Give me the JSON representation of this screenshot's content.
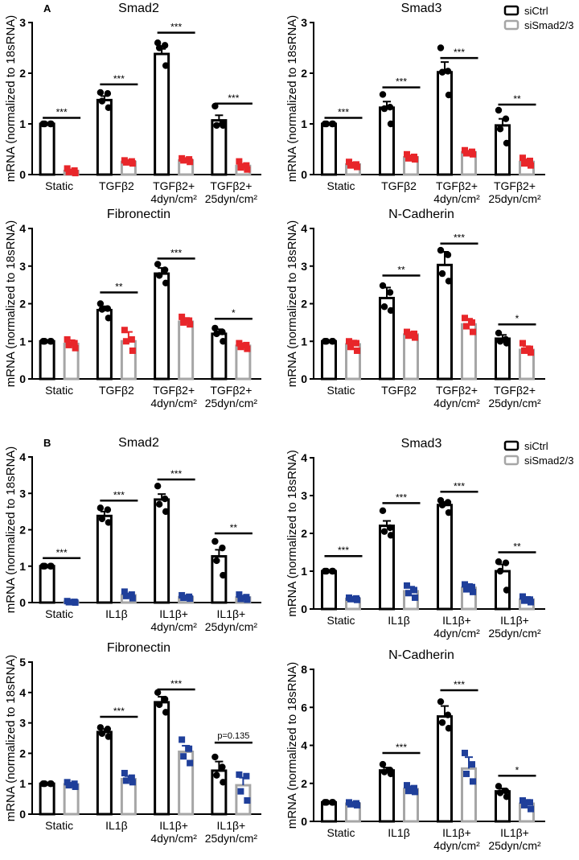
{
  "figure": {
    "legend": {
      "entries": [
        {
          "name": "siCtrl",
          "edge": "#000000"
        },
        {
          "name": "siSmad2/3",
          "edge": "#a6a6a6"
        }
      ]
    },
    "y_axis_label": "mRNA (normalized to 18sRNA)",
    "colors": {
      "ctrl_edge": "#000000",
      "knock_edge": "#a6a6a6",
      "ctrl_points": "#000000",
      "panelA_points": "#e8262a",
      "panelB_points": "#1f3f9a"
    }
  },
  "chart_data": [
    {
      "type": "bar",
      "panel": "A",
      "panel_label": "A",
      "title": "Smad2",
      "categories": [
        "Static",
        "TGFβ2",
        "TGFβ2+|4dyn/cm²",
        "TGFβ2+|25dyn/cm²"
      ],
      "ylabel": "mRNA (normalized to 18sRNA)",
      "ylim": [
        0,
        3
      ],
      "yticks": [
        0,
        1,
        2,
        3
      ],
      "series": [
        {
          "name": "siCtrl",
          "values": [
            1.0,
            1.47,
            2.38,
            1.07
          ],
          "errors": [
            0.0,
            0.08,
            0.1,
            0.1
          ],
          "points": [
            [
              1.0,
              1.0,
              1.0,
              1.0
            ],
            [
              1.62,
              1.6,
              1.45,
              1.32
            ],
            [
              2.6,
              2.55,
              2.5,
              2.15
            ],
            [
              1.35,
              1.0,
              0.97,
              0.97
            ]
          ]
        },
        {
          "name": "siSmad2/3",
          "values": [
            0.07,
            0.25,
            0.28,
            0.17
          ],
          "errors": [
            0.03,
            0.02,
            0.02,
            0.04
          ],
          "points": [
            [
              0.12,
              0.08,
              0.05,
              0.03
            ],
            [
              0.28,
              0.26,
              0.24,
              0.22
            ],
            [
              0.32,
              0.3,
              0.28,
              0.25
            ],
            [
              0.26,
              0.18,
              0.14,
              0.1
            ]
          ]
        }
      ],
      "significance": [
        "***",
        "***",
        "***",
        "***"
      ],
      "significance_levels": [
        1.12,
        1.78,
        2.8,
        1.4
      ]
    },
    {
      "type": "bar",
      "panel": "A",
      "panel_label": "",
      "title": "Smad3",
      "show_legend": true,
      "categories": [
        "Static",
        "TGFβ2",
        "TGFβ2+|4dyn/cm²",
        "TGFβ2+|25dyn/cm²"
      ],
      "ylabel": "mRNA (normalized to 18sRNA)",
      "ylim": [
        0,
        3
      ],
      "yticks": [
        0,
        1,
        2,
        3
      ],
      "series": [
        {
          "name": "siCtrl",
          "values": [
            1.0,
            1.32,
            2.02,
            0.97
          ],
          "errors": [
            0.0,
            0.12,
            0.2,
            0.13
          ],
          "points": [
            [
              1.0,
              1.0,
              1.0,
              1.0
            ],
            [
              1.58,
              1.33,
              1.3,
              1.0
            ],
            [
              2.5,
              2.04,
              2.02,
              1.57
            ],
            [
              1.27,
              1.1,
              0.9,
              0.62
            ]
          ]
        },
        {
          "name": "siSmad2/3",
          "values": [
            0.2,
            0.34,
            0.44,
            0.25
          ],
          "errors": [
            0.04,
            0.04,
            0.03,
            0.05
          ],
          "points": [
            [
              0.25,
              0.2,
              0.18,
              0.15
            ],
            [
              0.4,
              0.35,
              0.32,
              0.3
            ],
            [
              0.48,
              0.45,
              0.42,
              0.4
            ],
            [
              0.33,
              0.27,
              0.22,
              0.18
            ]
          ]
        }
      ],
      "significance": [
        "***",
        "***",
        "***",
        "**"
      ],
      "significance_levels": [
        1.12,
        1.72,
        2.3,
        1.38
      ]
    },
    {
      "type": "bar",
      "panel": "A",
      "panel_label": "",
      "title": "Fibronectin",
      "categories": [
        "Static",
        "TGFβ2",
        "TGFβ2+|4dyn/cm²",
        "TGFβ2+|25dyn/cm²"
      ],
      "ylabel": "mRNA (normalized to 18sRNA)",
      "ylim": [
        0,
        4
      ],
      "yticks": [
        0,
        1,
        2,
        3,
        4
      ],
      "series": [
        {
          "name": "siCtrl",
          "values": [
            1.0,
            1.83,
            2.8,
            1.2
          ],
          "errors": [
            0.0,
            0.1,
            0.15,
            0.12
          ],
          "points": [
            [
              1.0,
              1.0,
              1.0,
              1.0
            ],
            [
              2.0,
              1.87,
              1.85,
              1.62
            ],
            [
              3.05,
              2.9,
              2.75,
              2.55
            ],
            [
              1.35,
              1.25,
              1.2,
              1.0
            ]
          ]
        },
        {
          "name": "siSmad2/3",
          "values": [
            0.93,
            1.0,
            1.52,
            0.88
          ],
          "errors": [
            0.1,
            0.25,
            0.1,
            0.07
          ],
          "points": [
            [
              1.05,
              0.95,
              0.9,
              0.82
            ],
            [
              1.3,
              1.05,
              1.0,
              0.75
            ],
            [
              1.65,
              1.55,
              1.5,
              1.45
            ],
            [
              0.95,
              0.9,
              0.85,
              0.8
            ]
          ]
        }
      ],
      "significance": [
        "",
        "**",
        "***",
        "*"
      ],
      "significance_levels": [
        0,
        2.3,
        3.2,
        1.6
      ]
    },
    {
      "type": "bar",
      "panel": "A",
      "panel_label": "",
      "title": "N-Cadherin",
      "categories": [
        "Static",
        "TGFβ2",
        "TGFβ2+|4dyn/cm²",
        "TGFβ2+|25dyn/cm²"
      ],
      "ylabel": "mRNA (normalized to 18sRNA)",
      "ylim": [
        0,
        4
      ],
      "yticks": [
        0,
        1,
        2,
        3,
        4
      ],
      "series": [
        {
          "name": "siCtrl",
          "values": [
            1.0,
            2.15,
            3.03,
            1.07
          ],
          "errors": [
            0.0,
            0.28,
            0.35,
            0.1
          ],
          "points": [
            [
              1.0,
              1.0,
              1.0,
              1.0
            ],
            [
              2.48,
              2.3,
              1.92,
              1.82
            ],
            [
              3.42,
              3.3,
              2.8,
              2.6
            ],
            [
              1.22,
              1.05,
              1.0,
              0.95
            ]
          ]
        },
        {
          "name": "siSmad2/3",
          "values": [
            0.92,
            1.18,
            1.45,
            0.77
          ],
          "errors": [
            0.1,
            0.07,
            0.15,
            0.1
          ],
          "points": [
            [
              1.0,
              0.95,
              0.85,
              0.75
            ],
            [
              1.25,
              1.2,
              1.15,
              1.1
            ],
            [
              1.62,
              1.5,
              1.4,
              1.25
            ],
            [
              0.95,
              0.8,
              0.75,
              0.7
            ]
          ]
        }
      ],
      "significance": [
        "",
        "**",
        "***",
        "*"
      ],
      "significance_levels": [
        0,
        2.75,
        3.6,
        1.45
      ]
    },
    {
      "type": "bar",
      "panel": "B",
      "panel_label": "B",
      "title": "Smad2",
      "categories": [
        "Static",
        "IL1β",
        "IL1β+|4dyn/cm²",
        "IL1β+|25dyn/cm²"
      ],
      "ylabel": "mRNA (normalized to 18sRNA)",
      "ylim": [
        0,
        4
      ],
      "yticks": [
        0,
        1,
        2,
        3,
        4
      ],
      "series": [
        {
          "name": "siCtrl",
          "values": [
            1.0,
            2.38,
            2.83,
            1.27
          ],
          "errors": [
            0.0,
            0.12,
            0.15,
            0.18
          ],
          "points": [
            [
              1.0,
              1.0,
              1.0,
              1.0
            ],
            [
              2.6,
              2.55,
              2.3,
              2.2
            ],
            [
              3.2,
              2.85,
              2.7,
              2.5
            ],
            [
              1.68,
              1.5,
              1.15,
              0.75
            ]
          ]
        },
        {
          "name": "siSmad2/3",
          "values": [
            0.02,
            0.2,
            0.15,
            0.14
          ],
          "errors": [
            0.01,
            0.05,
            0.03,
            0.05
          ],
          "points": [
            [
              0.04,
              0.02,
              0.01,
              0.0
            ],
            [
              0.3,
              0.22,
              0.18,
              0.12
            ],
            [
              0.2,
              0.16,
              0.13,
              0.11
            ],
            [
              0.22,
              0.15,
              0.1,
              0.08
            ]
          ]
        }
      ],
      "significance": [
        "***",
        "***",
        "***",
        "**"
      ],
      "significance_levels": [
        1.22,
        2.8,
        3.38,
        1.9
      ]
    },
    {
      "type": "bar",
      "panel": "B",
      "panel_label": "",
      "title": "Smad3",
      "show_legend": true,
      "categories": [
        "Static",
        "IL1β",
        "IL1β+|4dyn/cm²",
        "IL1β+|25dyn/cm²"
      ],
      "ylabel": "mRNA (normalized to 18sRNA)",
      "ylim": [
        0,
        4
      ],
      "yticks": [
        0,
        1,
        2,
        3,
        4
      ],
      "series": [
        {
          "name": "siCtrl",
          "values": [
            1.0,
            2.2,
            2.75,
            1.0
          ],
          "errors": [
            0.0,
            0.13,
            0.08,
            0.18
          ],
          "points": [
            [
              1.0,
              1.0,
              1.0,
              1.0
            ],
            [
              2.6,
              2.15,
              2.05,
              1.95
            ],
            [
              2.87,
              2.82,
              2.75,
              2.55
            ],
            [
              1.25,
              1.22,
              1.0,
              0.5
            ]
          ]
        },
        {
          "name": "siSmad2/3",
          "values": [
            0.27,
            0.47,
            0.56,
            0.25
          ],
          "errors": [
            0.03,
            0.12,
            0.1,
            0.07
          ],
          "points": [
            [
              0.3,
              0.28,
              0.26,
              0.24
            ],
            [
              0.62,
              0.5,
              0.42,
              0.3
            ],
            [
              0.65,
              0.58,
              0.52,
              0.45
            ],
            [
              0.33,
              0.25,
              0.22,
              0.18
            ]
          ]
        }
      ],
      "significance": [
        "***",
        "***",
        "***",
        "**"
      ],
      "significance_levels": [
        1.4,
        2.8,
        3.1,
        1.5
      ]
    },
    {
      "type": "bar",
      "panel": "B",
      "panel_label": "",
      "title": "Fibronectin",
      "categories": [
        "Static",
        "IL1β",
        "IL1β+|4dyn/cm²",
        "IL1β+|25dyn/cm²"
      ],
      "ylabel": "mRNA (normalized to 18sRNA)",
      "ylim": [
        0,
        5
      ],
      "yticks": [
        0,
        1,
        2,
        3,
        4,
        5
      ],
      "series": [
        {
          "name": "siCtrl",
          "values": [
            1.0,
            2.7,
            3.68,
            1.43
          ],
          "errors": [
            0.0,
            0.1,
            0.18,
            0.3
          ],
          "points": [
            [
              1.0,
              1.0,
              1.0,
              1.0
            ],
            [
              2.85,
              2.8,
              2.65,
              2.55
            ],
            [
              4.0,
              3.78,
              3.6,
              3.35
            ],
            [
              1.88,
              1.55,
              1.28,
              1.05
            ]
          ]
        },
        {
          "name": "siSmad2/3",
          "values": [
            0.98,
            1.15,
            2.05,
            0.95
          ],
          "errors": [
            0.05,
            0.1,
            0.2,
            0.25
          ],
          "points": [
            [
              1.05,
              1.0,
              0.95,
              0.9
            ],
            [
              1.35,
              1.2,
              1.1,
              1.05
            ],
            [
              2.45,
              2.15,
              1.9,
              1.68
            ],
            [
              1.3,
              1.25,
              0.75,
              0.45
            ]
          ]
        }
      ],
      "significance": [
        "",
        "***",
        "***",
        "p=0.135"
      ],
      "significance_levels": [
        0,
        3.2,
        4.1,
        2.35
      ]
    },
    {
      "type": "bar",
      "panel": "B",
      "panel_label": "",
      "title": "N-Cadherin",
      "categories": [
        "Static",
        "IL1β",
        "IL1β+|4dyn/cm²",
        "IL1β+|25dyn/cm²"
      ],
      "ylabel": "mRNA (normalized to 18sRNA)",
      "ylim": [
        0,
        8
      ],
      "yticks": [
        0,
        2,
        4,
        6,
        8
      ],
      "series": [
        {
          "name": "siCtrl",
          "values": [
            1.0,
            2.68,
            5.52,
            1.58
          ],
          "errors": [
            0.0,
            0.15,
            0.55,
            0.15
          ],
          "points": [
            [
              1.0,
              1.0,
              1.0,
              1.0
            ],
            [
              3.0,
              2.7,
              2.6,
              2.5
            ],
            [
              6.3,
              5.6,
              5.2,
              4.9
            ],
            [
              1.85,
              1.6,
              1.5,
              1.3
            ]
          ]
        },
        {
          "name": "siSmad2/3",
          "values": [
            0.93,
            1.7,
            2.78,
            0.93
          ],
          "errors": [
            0.07,
            0.15,
            0.6,
            0.2
          ],
          "points": [
            [
              1.0,
              0.95,
              0.9,
              0.85
            ],
            [
              1.9,
              1.75,
              1.6,
              1.55
            ],
            [
              3.6,
              3.0,
              2.5,
              2.1
            ],
            [
              1.1,
              1.0,
              0.85,
              0.65
            ]
          ]
        }
      ],
      "significance": [
        "",
        "***",
        "***",
        "*"
      ],
      "significance_levels": [
        0,
        3.6,
        6.9,
        2.4
      ]
    }
  ]
}
